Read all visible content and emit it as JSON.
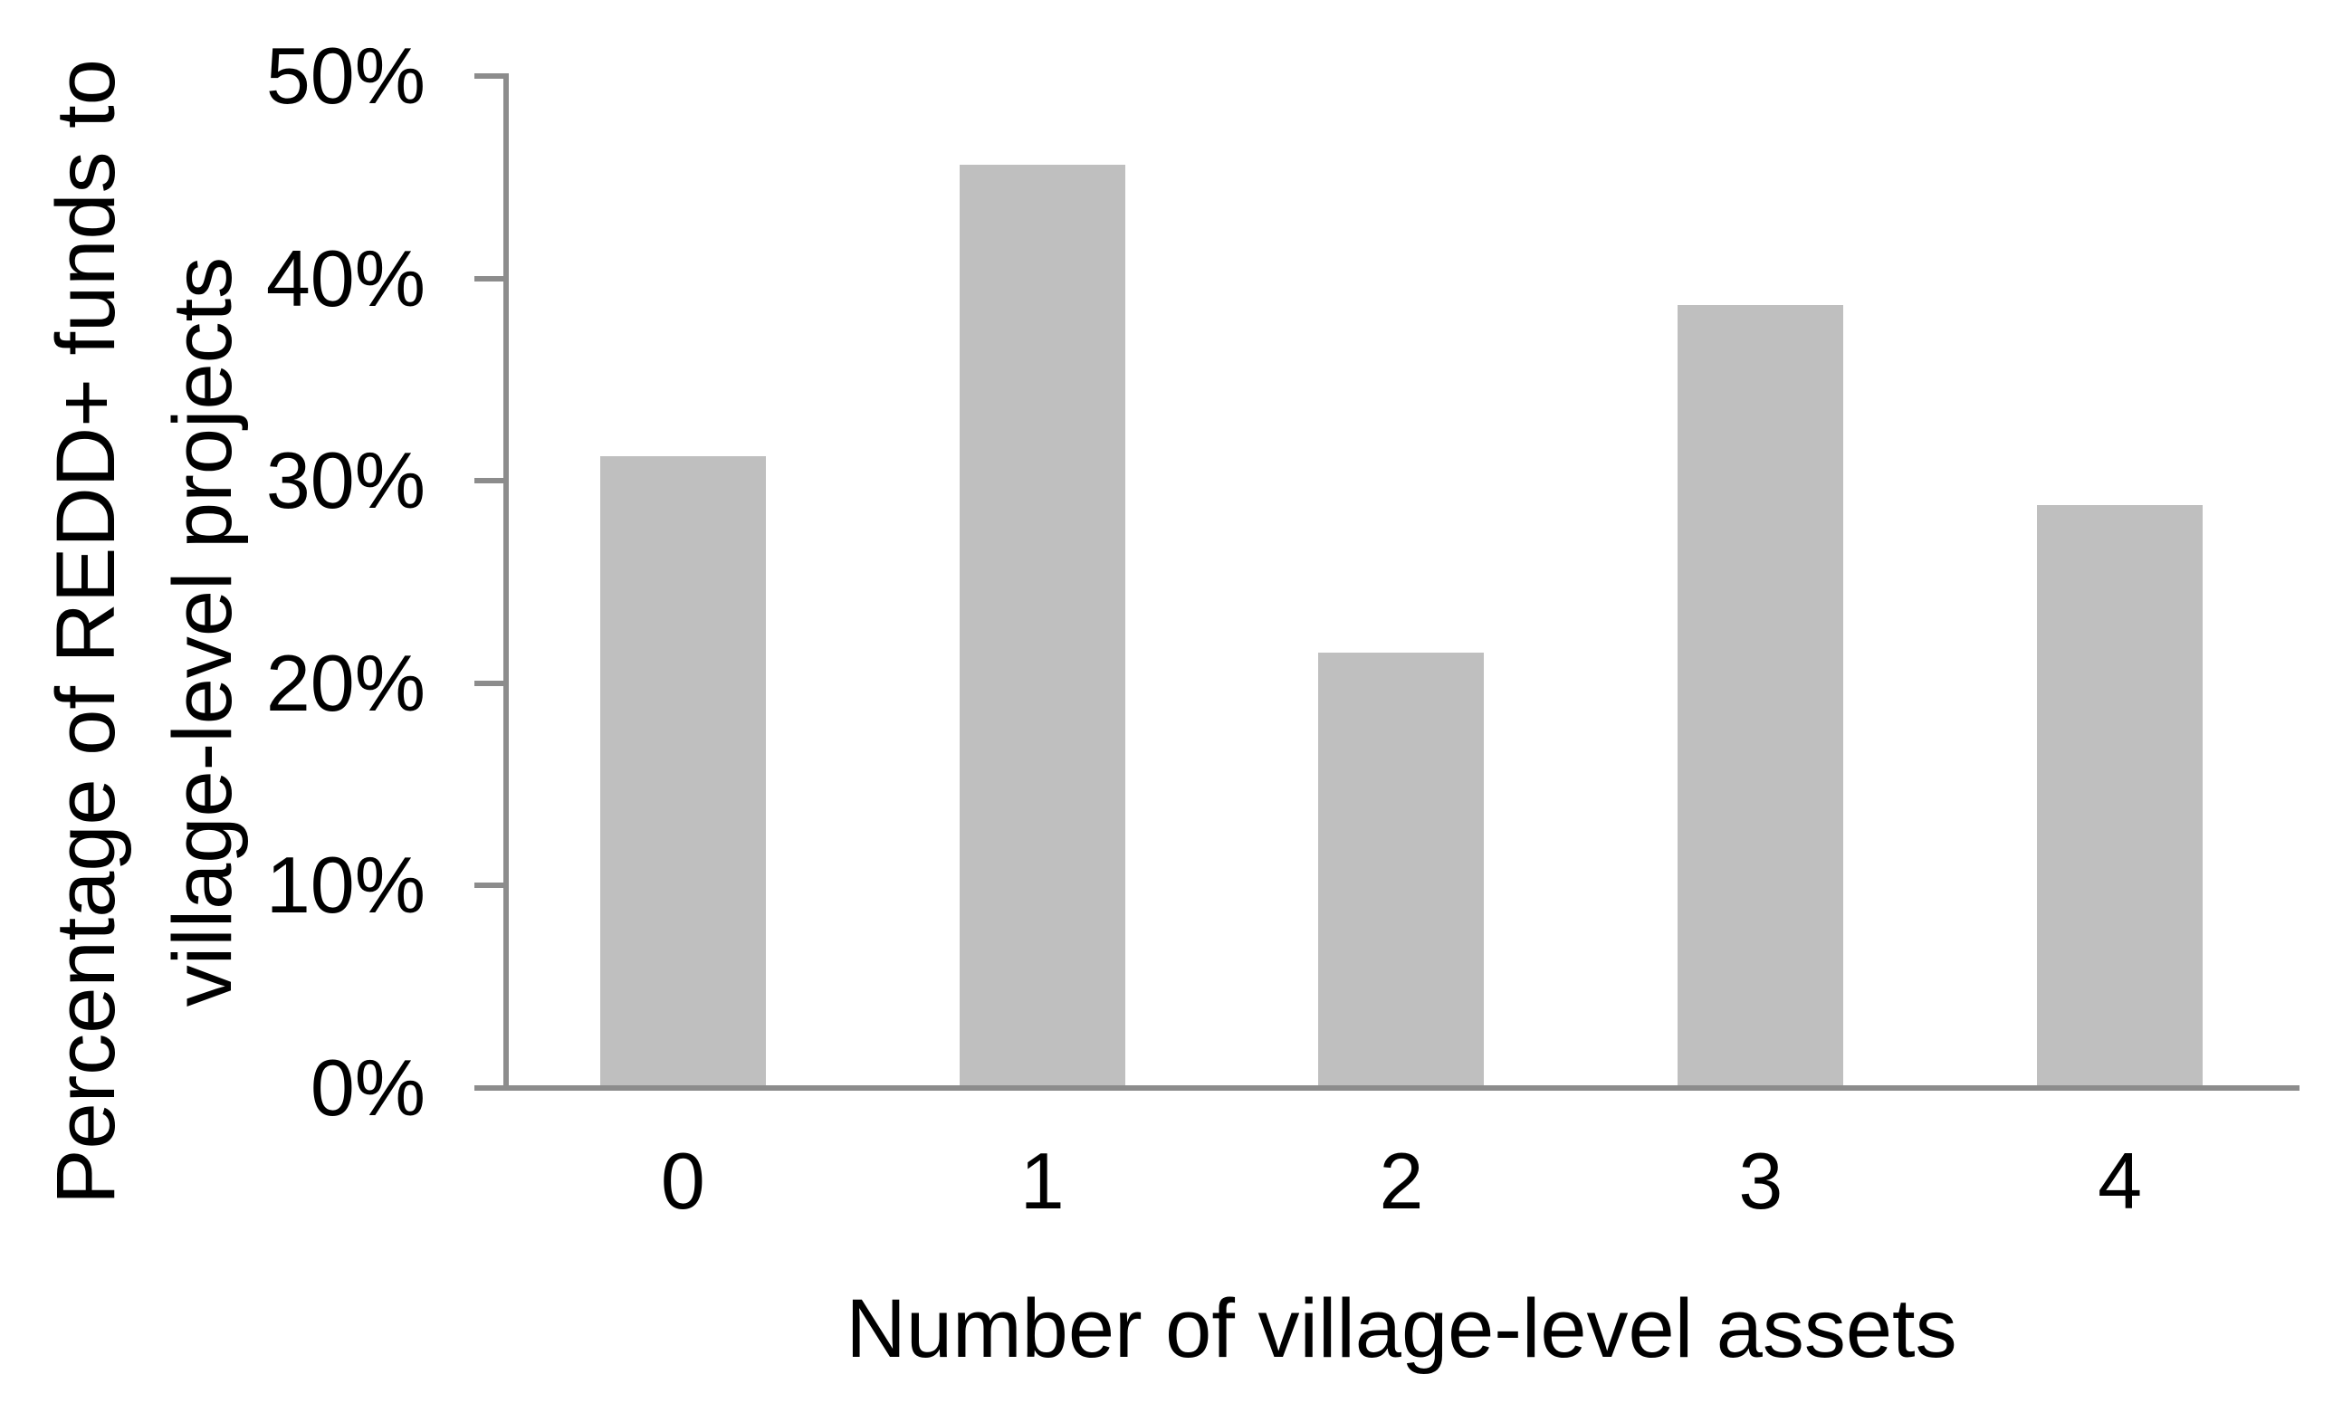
{
  "chart_data": {
    "type": "bar",
    "title": "",
    "categories": [
      "0",
      "1",
      "2",
      "3",
      "4"
    ],
    "values": [
      31.2,
      45.6,
      21.5,
      38.7,
      28.8
    ],
    "xlabel": "Number of village-level assets",
    "ylabel": "Percentage of REDD+ funds to village-level projects",
    "ylabel_lines": [
      "Percentage of REDD+ funds to",
      "village-level projects"
    ],
    "y_tick_values": [
      0,
      10,
      20,
      30,
      40,
      50
    ],
    "y_tick_labels": [
      "0%",
      "10%",
      "20%",
      "30%",
      "40%",
      "50%"
    ],
    "ylim": [
      0,
      50
    ],
    "grid": false,
    "legend": "none",
    "bar_color": "#bfbfbf",
    "axis_color": "#8c8c8c",
    "text_color": "#000000"
  }
}
